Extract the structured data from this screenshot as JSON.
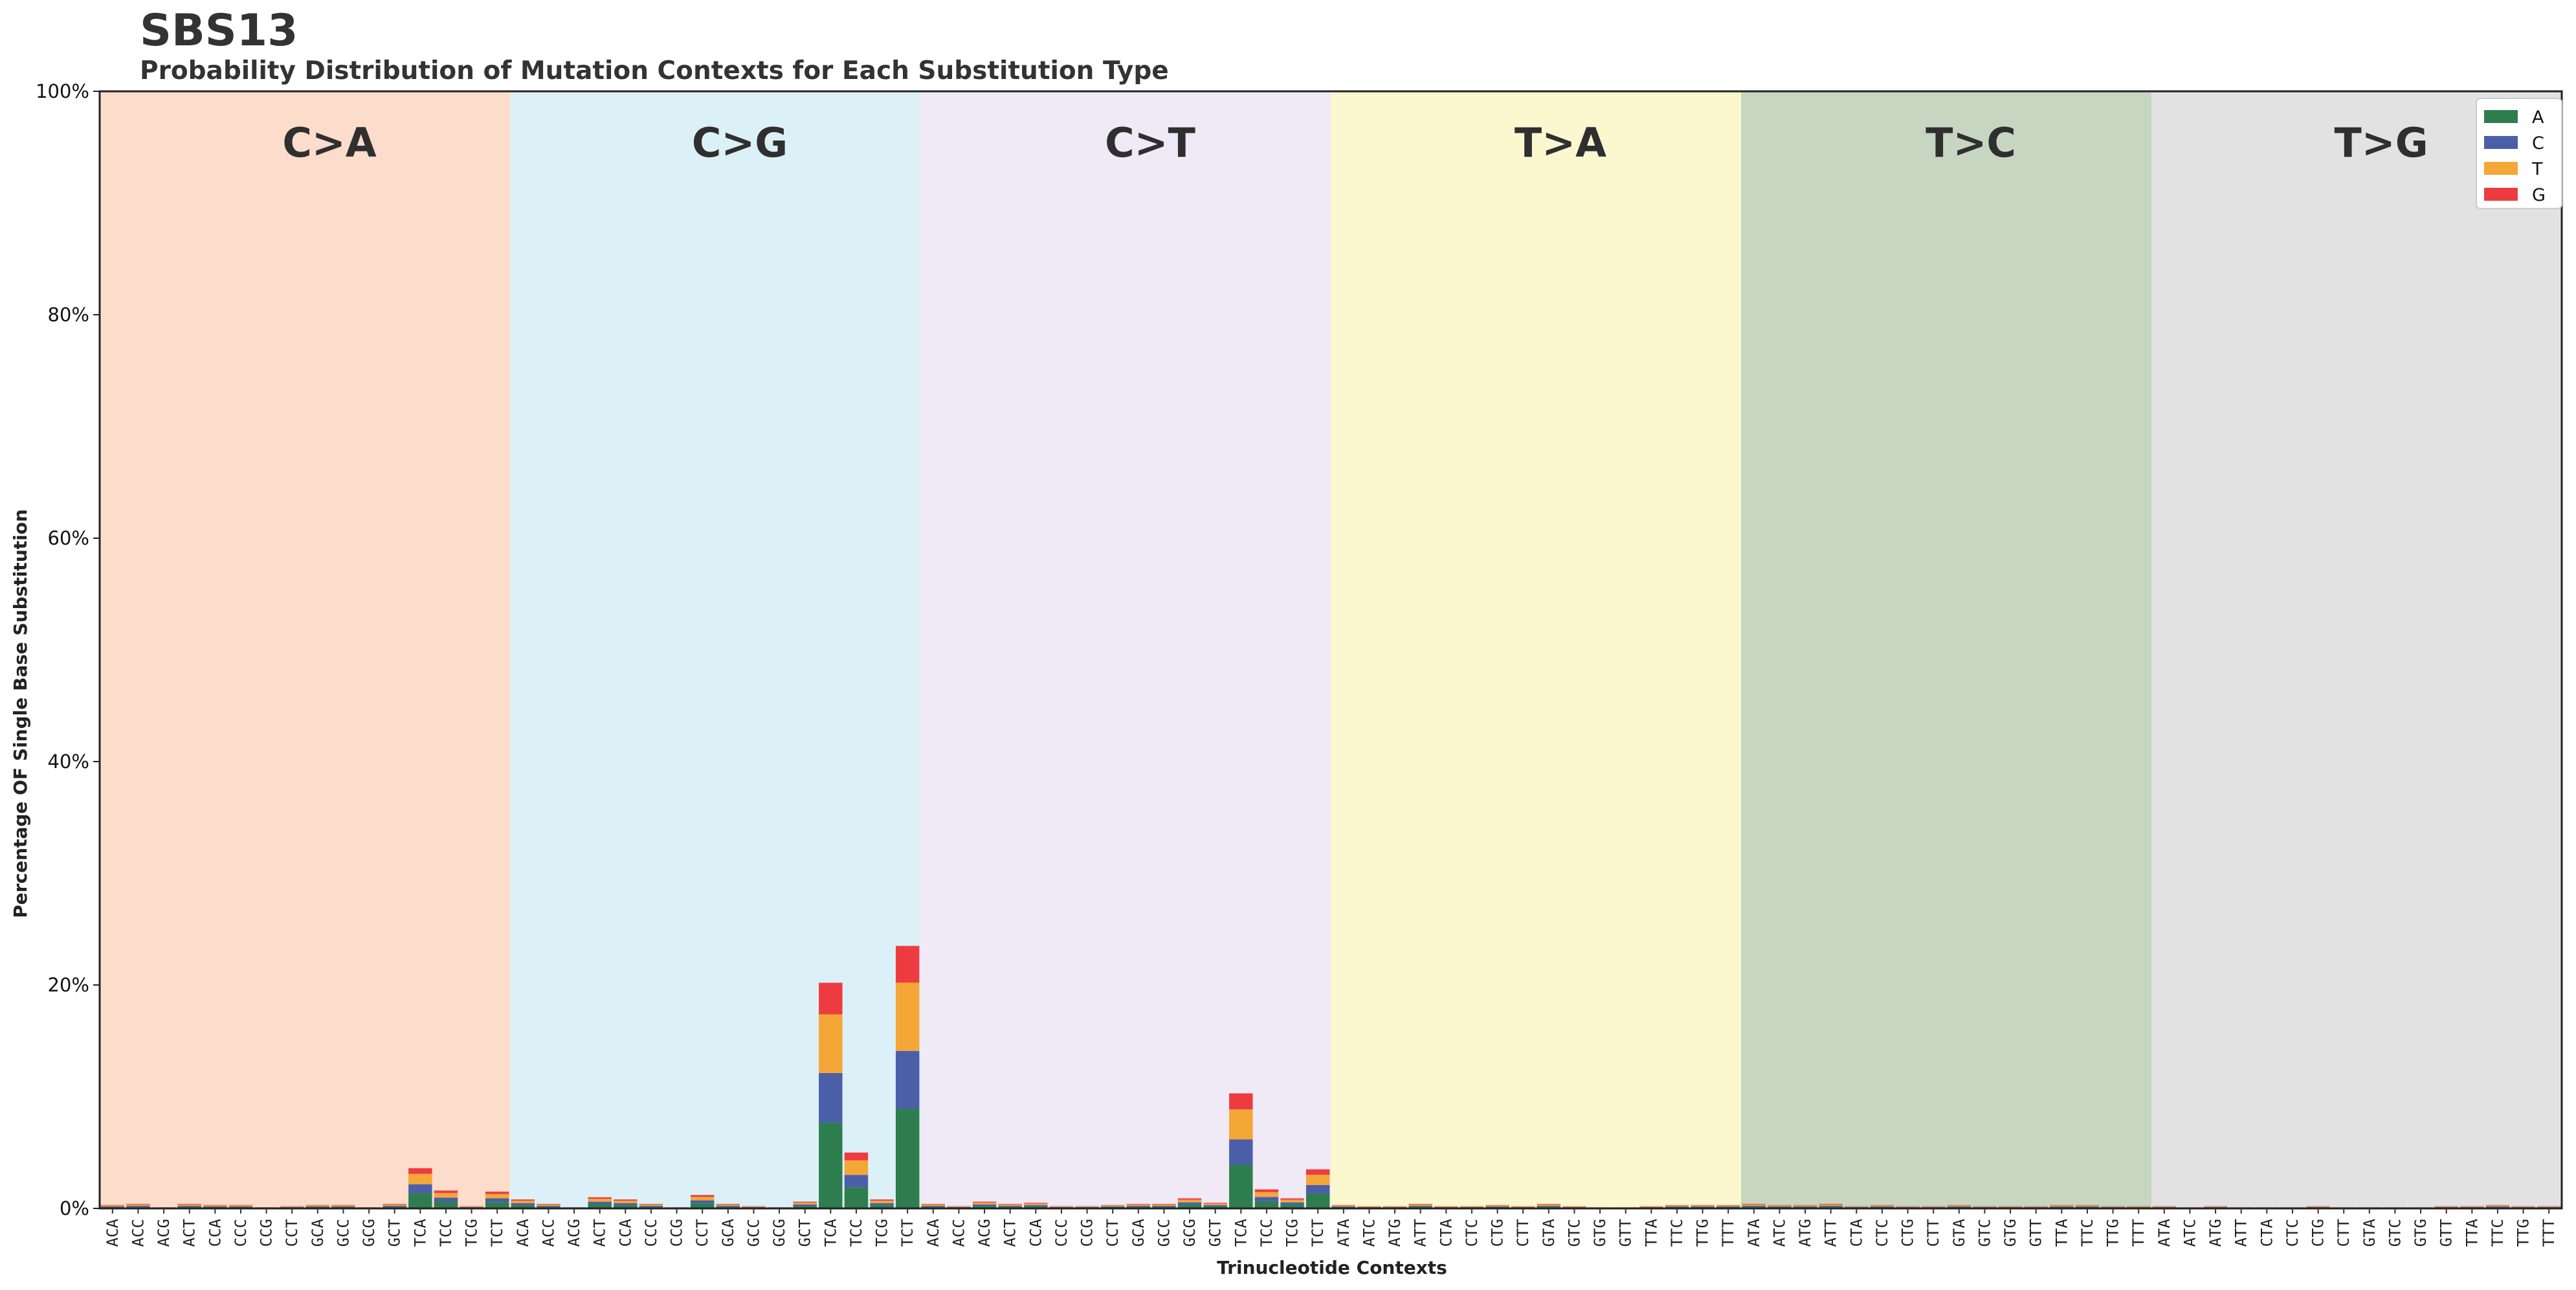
{
  "chart_data": {
    "type": "bar",
    "title": "SBS13",
    "subtitle": "Probability Distribution of Mutation Contexts for Each Substitution Type",
    "xlabel": "Trinucleotide Contexts",
    "ylabel": "Percentage OF Single Base Substitution",
    "ylim": [
      0,
      100
    ],
    "yticks": [
      "0%",
      "20%",
      "40%",
      "60%",
      "80%",
      "100%"
    ],
    "ytick_values": [
      0,
      20,
      40,
      60,
      80,
      100
    ],
    "legend": {
      "placement": "top-right",
      "entries": [
        "A",
        "C",
        "T",
        "G"
      ]
    },
    "colors": {
      "A": "#2e7d4f",
      "C": "#4a5fa8",
      "T": "#f4a636",
      "G": "#ee3b3f"
    },
    "groups": [
      {
        "label": "C>A",
        "color": "#fcdccb",
        "contexts": [
          "ACA",
          "ACC",
          "ACG",
          "ACT",
          "CCA",
          "CCC",
          "CCG",
          "CCT",
          "GCA",
          "GCC",
          "GCG",
          "GCT",
          "TCA",
          "TCC",
          "TCG",
          "TCT"
        ],
        "values": [
          0.3,
          0.4,
          0.1,
          0.4,
          0.3,
          0.3,
          0.1,
          0.2,
          0.3,
          0.3,
          0.1,
          0.4,
          3.6,
          1.6,
          0.2,
          1.5
        ]
      },
      {
        "label": "C>G",
        "color": "#dcf0f7",
        "contexts": [
          "ACA",
          "ACC",
          "ACG",
          "ACT",
          "CCA",
          "CCC",
          "CCG",
          "CCT",
          "GCA",
          "GCC",
          "GCG",
          "GCT",
          "TCA",
          "TCC",
          "TCG",
          "TCT"
        ],
        "values": [
          0.8,
          0.4,
          0.1,
          1.0,
          0.8,
          0.4,
          0.1,
          1.2,
          0.4,
          0.2,
          0.1,
          0.6,
          20.2,
          5.0,
          0.8,
          23.5
        ]
      },
      {
        "label": "C>T",
        "color": "#f0e9f6",
        "contexts": [
          "ACA",
          "ACC",
          "ACG",
          "ACT",
          "CCA",
          "CCC",
          "CCG",
          "CCT",
          "GCA",
          "GCC",
          "GCG",
          "GCT",
          "TCA",
          "TCC",
          "TCG",
          "TCT"
        ],
        "values": [
          0.4,
          0.2,
          0.6,
          0.4,
          0.5,
          0.2,
          0.2,
          0.3,
          0.4,
          0.4,
          0.9,
          0.5,
          10.3,
          1.7,
          0.9,
          3.5
        ]
      },
      {
        "label": "T>A",
        "color": "#fbf8d0",
        "contexts": [
          "ATA",
          "ATC",
          "ATG",
          "ATT",
          "CTA",
          "CTC",
          "CTG",
          "CTT",
          "GTA",
          "GTC",
          "GTG",
          "GTT",
          "TTA",
          "TTC",
          "TTG",
          "TTT"
        ],
        "values": [
          0.3,
          0.2,
          0.2,
          0.4,
          0.2,
          0.2,
          0.3,
          0.2,
          0.4,
          0.2,
          0.1,
          0.1,
          0.2,
          0.3,
          0.3,
          0.3
        ]
      },
      {
        "label": "T>C",
        "color": "#c6d6c1",
        "contexts": [
          "ATA",
          "ATC",
          "ATG",
          "ATT",
          "CTA",
          "CTC",
          "CTG",
          "CTT",
          "GTA",
          "GTC",
          "GTG",
          "GTT",
          "TTA",
          "TTC",
          "TTG",
          "TTT"
        ],
        "values": [
          0.4,
          0.3,
          0.3,
          0.4,
          0.2,
          0.3,
          0.2,
          0.2,
          0.3,
          0.2,
          0.2,
          0.2,
          0.3,
          0.3,
          0.2,
          0.2
        ]
      },
      {
        "label": "T>G",
        "color": "#e2e2e2",
        "contexts": [
          "ATA",
          "ATC",
          "ATG",
          "ATT",
          "CTA",
          "CTC",
          "CTG",
          "CTT",
          "GTA",
          "GTC",
          "GTG",
          "GTT",
          "TTA",
          "TTC",
          "TTG",
          "TTT"
        ],
        "values": [
          0.2,
          0.1,
          0.2,
          0.1,
          0.1,
          0.1,
          0.2,
          0.1,
          0.1,
          0.1,
          0.1,
          0.2,
          0.2,
          0.3,
          0.2,
          0.2
        ]
      }
    ]
  }
}
